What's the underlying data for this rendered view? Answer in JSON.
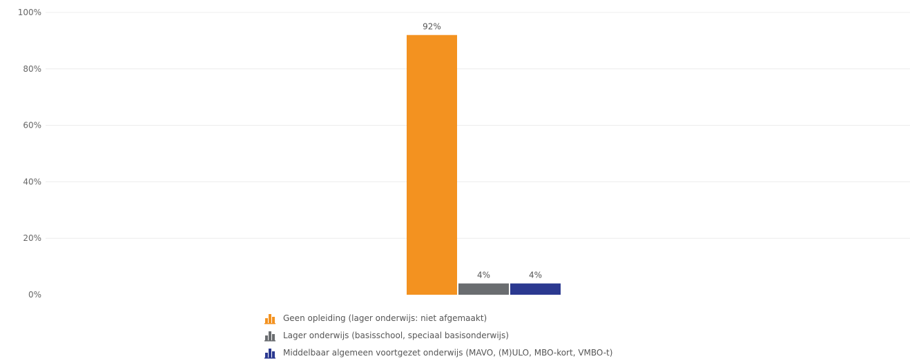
{
  "chart_data": {
    "type": "bar",
    "categories": [
      ""
    ],
    "series": [
      {
        "name": "Geen opleiding (lager onderwijs: niet afgemaakt)",
        "values": [
          92
        ],
        "label": "92%",
        "color": "#f39220"
      },
      {
        "name": "Lager onderwijs (basisschool, speciaal basisonderwijs)",
        "values": [
          4
        ],
        "label": "4%",
        "color": "#6a6d70"
      },
      {
        "name": "Middelbaar algemeen voortgezet onderwijs (MAVO, (M)ULO, MBO-kort, VMBO-t)",
        "values": [
          4
        ],
        "label": "4%",
        "color": "#2b3990"
      }
    ],
    "ylim": [
      0,
      100
    ],
    "yticks": [
      0,
      20,
      40,
      60,
      80,
      100
    ],
    "ytick_labels": [
      "0%",
      "20%",
      "40%",
      "60%",
      "80%",
      "100%"
    ],
    "title": "",
    "xlabel": "",
    "ylabel": "",
    "grid": true,
    "legend_position": "bottom"
  }
}
